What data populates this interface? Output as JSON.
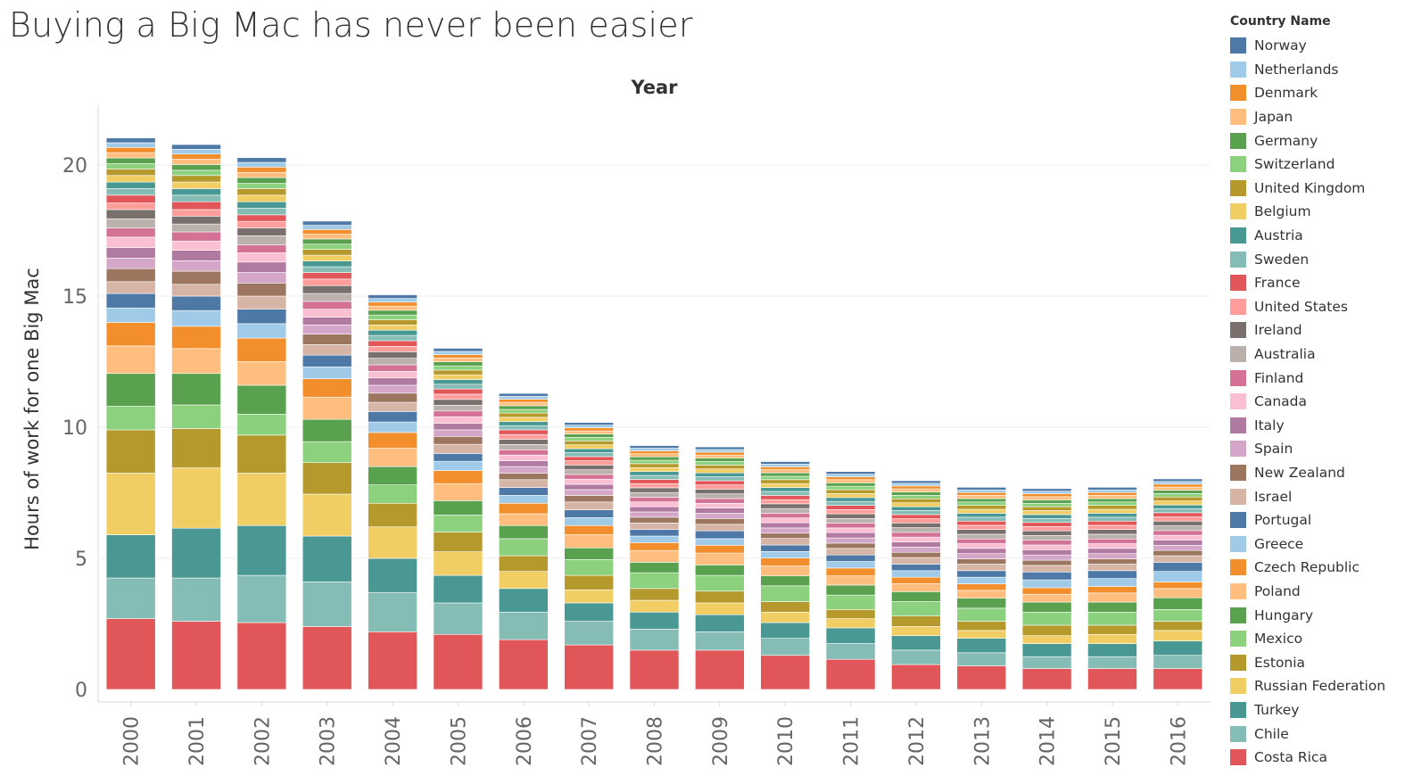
{
  "title": "Buying a Big Mac has never been easier",
  "legend": {
    "title": "Country Name",
    "items": [
      {
        "name": "Norway",
        "color": "#4e79a7"
      },
      {
        "name": "Netherlands",
        "color": "#a0cbe8"
      },
      {
        "name": "Denmark",
        "color": "#f28e2b"
      },
      {
        "name": "Japan",
        "color": "#ffbe7d"
      },
      {
        "name": "Germany",
        "color": "#59a14f"
      },
      {
        "name": "Switzerland",
        "color": "#8cd17d"
      },
      {
        "name": "United Kingdom",
        "color": "#b6992d"
      },
      {
        "name": "Belgium",
        "color": "#f1ce63"
      },
      {
        "name": "Austria",
        "color": "#499894"
      },
      {
        "name": "Sweden",
        "color": "#86bcb6"
      },
      {
        "name": "France",
        "color": "#e15759"
      },
      {
        "name": "United States",
        "color": "#ff9d9a"
      },
      {
        "name": "Ireland",
        "color": "#79706e"
      },
      {
        "name": "Australia",
        "color": "#bab0ac"
      },
      {
        "name": "Finland",
        "color": "#d37295"
      },
      {
        "name": "Canada",
        "color": "#fabfd2"
      },
      {
        "name": "Italy",
        "color": "#b07aa1"
      },
      {
        "name": "Spain",
        "color": "#d4a6c8"
      },
      {
        "name": "New Zealand",
        "color": "#9d7660"
      },
      {
        "name": "Israel",
        "color": "#d7b5a6"
      },
      {
        "name": "Portugal",
        "color": "#4e79a7"
      },
      {
        "name": "Greece",
        "color": "#a0cbe8"
      },
      {
        "name": "Czech Republic",
        "color": "#f28e2b"
      },
      {
        "name": "Poland",
        "color": "#ffbe7d"
      },
      {
        "name": "Hungary",
        "color": "#59a14f"
      },
      {
        "name": "Mexico",
        "color": "#8cd17d"
      },
      {
        "name": "Estonia",
        "color": "#b6992d"
      },
      {
        "name": "Russian Federation",
        "color": "#f1ce63"
      },
      {
        "name": "Turkey",
        "color": "#499894"
      },
      {
        "name": "Chile",
        "color": "#86bcb6"
      },
      {
        "name": "Costa Rica",
        "color": "#e15759"
      }
    ]
  },
  "chart_data": {
    "type": "bar",
    "stacked": true,
    "title": "Buying a Big Mac has never been easier",
    "column_header": "Year",
    "ylabel": "Hours of work for one Big Mac",
    "ylim": [
      0,
      22
    ],
    "yticks": [
      0,
      5,
      10,
      15,
      20
    ],
    "grid": true,
    "legend_position": "right",
    "categories": [
      "2000",
      "2001",
      "2002",
      "2003",
      "2004",
      "2005",
      "2006",
      "2007",
      "2008",
      "2009",
      "2010",
      "2011",
      "2012",
      "2013",
      "2014",
      "2015",
      "2016"
    ],
    "series": [
      {
        "name": "Costa Rica",
        "values": [
          2.7,
          2.6,
          2.55,
          2.4,
          2.2,
          2.1,
          1.9,
          1.7,
          1.5,
          1.5,
          1.3,
          1.15,
          0.95,
          0.9,
          0.8,
          0.8,
          0.8
        ]
      },
      {
        "name": "Chile",
        "values": [
          1.55,
          1.65,
          1.8,
          1.7,
          1.5,
          1.2,
          1.05,
          0.9,
          0.8,
          0.7,
          0.65,
          0.6,
          0.55,
          0.5,
          0.45,
          0.45,
          0.5
        ]
      },
      {
        "name": "Turkey",
        "values": [
          1.65,
          1.9,
          1.9,
          1.75,
          1.3,
          1.05,
          0.9,
          0.7,
          0.65,
          0.65,
          0.6,
          0.6,
          0.55,
          0.55,
          0.5,
          0.5,
          0.55
        ]
      },
      {
        "name": "Russian Federation",
        "values": [
          2.35,
          2.3,
          2.0,
          1.6,
          1.2,
          0.9,
          0.65,
          0.5,
          0.45,
          0.45,
          0.4,
          0.35,
          0.35,
          0.3,
          0.3,
          0.35,
          0.4
        ]
      },
      {
        "name": "Estonia",
        "values": [
          1.65,
          1.5,
          1.45,
          1.2,
          0.9,
          0.75,
          0.6,
          0.55,
          0.45,
          0.45,
          0.4,
          0.35,
          0.4,
          0.35,
          0.4,
          0.35,
          0.35
        ]
      },
      {
        "name": "Mexico",
        "values": [
          0.9,
          0.9,
          0.8,
          0.8,
          0.7,
          0.65,
          0.65,
          0.6,
          0.6,
          0.6,
          0.6,
          0.55,
          0.55,
          0.5,
          0.5,
          0.5,
          0.45
        ]
      },
      {
        "name": "Hungary",
        "values": [
          1.25,
          1.2,
          1.1,
          0.85,
          0.7,
          0.55,
          0.5,
          0.45,
          0.4,
          0.4,
          0.38,
          0.38,
          0.38,
          0.38,
          0.38,
          0.38,
          0.45
        ]
      },
      {
        "name": "Poland",
        "values": [
          1.05,
          0.95,
          0.9,
          0.85,
          0.7,
          0.65,
          0.45,
          0.5,
          0.45,
          0.45,
          0.38,
          0.35,
          0.3,
          0.3,
          0.3,
          0.35,
          0.35
        ]
      },
      {
        "name": "Czech Republic",
        "values": [
          0.9,
          0.85,
          0.9,
          0.7,
          0.6,
          0.5,
          0.4,
          0.35,
          0.3,
          0.3,
          0.3,
          0.3,
          0.25,
          0.25,
          0.25,
          0.25,
          0.25
        ]
      },
      {
        "name": "Greece",
        "values": [
          0.55,
          0.6,
          0.55,
          0.45,
          0.4,
          0.35,
          0.3,
          0.3,
          0.25,
          0.25,
          0.25,
          0.25,
          0.25,
          0.25,
          0.3,
          0.3,
          0.4
        ]
      },
      {
        "name": "Portugal",
        "values": [
          0.55,
          0.55,
          0.55,
          0.45,
          0.4,
          0.3,
          0.3,
          0.3,
          0.25,
          0.3,
          0.25,
          0.25,
          0.25,
          0.25,
          0.3,
          0.3,
          0.35
        ]
      },
      {
        "name": "Israel",
        "values": [
          0.45,
          0.45,
          0.5,
          0.4,
          0.35,
          0.35,
          0.3,
          0.3,
          0.25,
          0.25,
          0.25,
          0.25,
          0.25,
          0.25,
          0.25,
          0.25,
          0.25
        ]
      },
      {
        "name": "New Zealand",
        "values": [
          0.5,
          0.5,
          0.5,
          0.4,
          0.35,
          0.3,
          0.25,
          0.25,
          0.22,
          0.22,
          0.2,
          0.2,
          0.2,
          0.2,
          0.2,
          0.2,
          0.2
        ]
      },
      {
        "name": "Spain",
        "values": [
          0.4,
          0.4,
          0.4,
          0.35,
          0.3,
          0.25,
          0.25,
          0.22,
          0.2,
          0.2,
          0.2,
          0.2,
          0.2,
          0.2,
          0.2,
          0.2,
          0.2
        ]
      },
      {
        "name": "Italy",
        "values": [
          0.4,
          0.4,
          0.4,
          0.3,
          0.28,
          0.25,
          0.22,
          0.2,
          0.2,
          0.2,
          0.2,
          0.2,
          0.2,
          0.2,
          0.2,
          0.2,
          0.2
        ]
      },
      {
        "name": "Canada",
        "values": [
          0.4,
          0.35,
          0.35,
          0.3,
          0.25,
          0.25,
          0.22,
          0.2,
          0.18,
          0.18,
          0.18,
          0.18,
          0.18,
          0.18,
          0.18,
          0.18,
          0.18
        ]
      },
      {
        "name": "Finland",
        "values": [
          0.35,
          0.35,
          0.3,
          0.3,
          0.25,
          0.22,
          0.2,
          0.18,
          0.18,
          0.18,
          0.18,
          0.18,
          0.18,
          0.18,
          0.18,
          0.18,
          0.18
        ]
      },
      {
        "name": "Australia",
        "values": [
          0.35,
          0.3,
          0.35,
          0.3,
          0.25,
          0.22,
          0.2,
          0.18,
          0.18,
          0.18,
          0.18,
          0.18,
          0.18,
          0.18,
          0.18,
          0.18,
          0.18
        ]
      },
      {
        "name": "Ireland",
        "values": [
          0.35,
          0.3,
          0.3,
          0.3,
          0.25,
          0.22,
          0.2,
          0.18,
          0.18,
          0.18,
          0.18,
          0.18,
          0.18,
          0.18,
          0.18,
          0.18,
          0.18
        ]
      },
      {
        "name": "United States",
        "values": [
          0.25,
          0.25,
          0.25,
          0.25,
          0.2,
          0.2,
          0.18,
          0.16,
          0.16,
          0.16,
          0.16,
          0.16,
          0.16,
          0.16,
          0.16,
          0.16,
          0.16
        ]
      },
      {
        "name": "France",
        "values": [
          0.3,
          0.3,
          0.25,
          0.25,
          0.22,
          0.2,
          0.18,
          0.16,
          0.16,
          0.16,
          0.16,
          0.16,
          0.16,
          0.16,
          0.16,
          0.16,
          0.16
        ]
      },
      {
        "name": "Sweden",
        "values": [
          0.25,
          0.25,
          0.25,
          0.22,
          0.2,
          0.18,
          0.16,
          0.15,
          0.15,
          0.15,
          0.15,
          0.15,
          0.15,
          0.15,
          0.15,
          0.15,
          0.15
        ]
      },
      {
        "name": "Austria",
        "values": [
          0.25,
          0.25,
          0.25,
          0.22,
          0.2,
          0.18,
          0.16,
          0.15,
          0.15,
          0.15,
          0.15,
          0.15,
          0.15,
          0.15,
          0.15,
          0.15,
          0.15
        ]
      },
      {
        "name": "Belgium",
        "values": [
          0.25,
          0.25,
          0.25,
          0.22,
          0.2,
          0.18,
          0.16,
          0.15,
          0.15,
          0.15,
          0.15,
          0.15,
          0.15,
          0.15,
          0.15,
          0.15,
          0.15
        ]
      },
      {
        "name": "United Kingdom",
        "values": [
          0.25,
          0.25,
          0.25,
          0.22,
          0.2,
          0.18,
          0.16,
          0.15,
          0.15,
          0.15,
          0.15,
          0.15,
          0.15,
          0.15,
          0.15,
          0.15,
          0.15
        ]
      },
      {
        "name": "Switzerland",
        "values": [
          0.2,
          0.2,
          0.2,
          0.2,
          0.18,
          0.16,
          0.14,
          0.13,
          0.13,
          0.13,
          0.13,
          0.13,
          0.13,
          0.13,
          0.13,
          0.13,
          0.13
        ]
      },
      {
        "name": "Germany",
        "values": [
          0.22,
          0.22,
          0.22,
          0.2,
          0.18,
          0.16,
          0.14,
          0.13,
          0.13,
          0.13,
          0.13,
          0.13,
          0.13,
          0.13,
          0.13,
          0.13,
          0.13
        ]
      },
      {
        "name": "Japan",
        "values": [
          0.2,
          0.2,
          0.2,
          0.18,
          0.16,
          0.14,
          0.13,
          0.12,
          0.12,
          0.12,
          0.12,
          0.12,
          0.12,
          0.12,
          0.12,
          0.12,
          0.12
        ]
      },
      {
        "name": "Denmark",
        "values": [
          0.2,
          0.2,
          0.2,
          0.18,
          0.15,
          0.13,
          0.12,
          0.12,
          0.11,
          0.11,
          0.11,
          0.11,
          0.11,
          0.11,
          0.11,
          0.11,
          0.11
        ]
      },
      {
        "name": "Netherlands",
        "values": [
          0.18,
          0.18,
          0.18,
          0.16,
          0.14,
          0.12,
          0.11,
          0.1,
          0.1,
          0.1,
          0.1,
          0.1,
          0.1,
          0.1,
          0.1,
          0.1,
          0.1
        ]
      },
      {
        "name": "Norway",
        "values": [
          0.18,
          0.18,
          0.18,
          0.16,
          0.14,
          0.12,
          0.11,
          0.1,
          0.1,
          0.1,
          0.1,
          0.1,
          0.1,
          0.1,
          0.1,
          0.1,
          0.1
        ]
      }
    ]
  }
}
